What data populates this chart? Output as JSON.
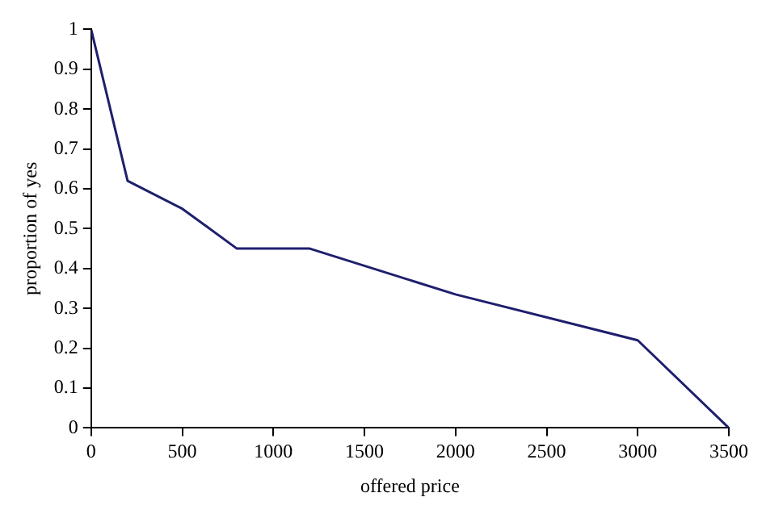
{
  "chart_data": {
    "type": "line",
    "xlabel": "offered price",
    "ylabel": "proportion of yes",
    "x": [
      0,
      200,
      500,
      800,
      1200,
      2000,
      3000,
      3500
    ],
    "series": [
      {
        "color": "#1f1f6e",
        "values": [
          1,
          0.62,
          0.55,
          0.45,
          0.45,
          0.335,
          0.22,
          0
        ]
      }
    ],
    "xlim": [
      0,
      3500
    ],
    "xticks": [
      0,
      500,
      1000,
      1500,
      2000,
      2500,
      3000,
      3500
    ],
    "ylim": [
      0,
      1
    ],
    "yticks": [
      0,
      0.1,
      0.2,
      0.3,
      0.4,
      0.5,
      0.6,
      0.7,
      0.8,
      0.9,
      1
    ],
    "grid": false,
    "legend": false,
    "marker": "none",
    "line_style": "solid"
  }
}
